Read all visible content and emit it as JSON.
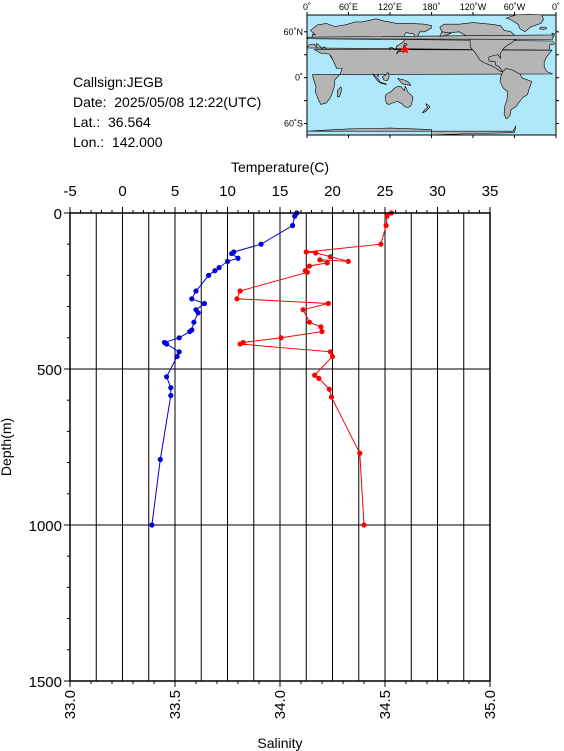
{
  "info": {
    "callsign": "Callsign:JEGB",
    "date": "Date:  2025/05/08 12:22(UTC)",
    "lat": "Lat.:  36.564",
    "lon": "Lon.:  142.000"
  },
  "map": {
    "top_labels": [
      "0˚",
      "60˚E",
      "120˚E",
      "180˚",
      "120˚W",
      "60˚W",
      "0˚"
    ],
    "side_labels": [
      "60˚N",
      "0˚",
      "60˚S"
    ],
    "ocean_color": "#aee8fa",
    "land_color": "#b5b5b5",
    "marker_lon": 142.0,
    "marker_lat": 36.564,
    "marker_color": "#ff0000",
    "marker_icon": "star-icon"
  },
  "chart_data": {
    "type": "line",
    "ylabel": "Depth(m)",
    "y_ticks": [
      "0",
      "500",
      "1000",
      "1500"
    ],
    "ylim": [
      1500,
      0
    ],
    "temperature_axis": {
      "label": "Temperature(C)",
      "ticks": [
        "-5",
        "0",
        "5",
        "10",
        "15",
        "20",
        "25",
        "30",
        "35"
      ],
      "range": [
        -5,
        35
      ]
    },
    "salinity_axis": {
      "label": "Salinity",
      "ticks": [
        "33.0",
        "33.5",
        "34.0",
        "34.5",
        "35.0"
      ],
      "range": [
        33.0,
        35.0
      ]
    },
    "grid": true,
    "series": [
      {
        "key": "temperature",
        "color": "#ff0000",
        "points": [
          [
            25.6,
            0
          ],
          [
            25.2,
            10
          ],
          [
            25.1,
            40
          ],
          [
            24.6,
            100
          ],
          [
            17.5,
            125
          ],
          [
            18.4,
            128
          ],
          [
            19.8,
            140
          ],
          [
            21.5,
            155
          ],
          [
            18.8,
            150
          ],
          [
            19.5,
            160
          ],
          [
            17.8,
            170
          ],
          [
            17.4,
            185
          ],
          [
            17.6,
            190
          ],
          [
            11.2,
            250
          ],
          [
            10.9,
            275
          ],
          [
            19.6,
            290
          ],
          [
            17.2,
            310
          ],
          [
            17.8,
            350
          ],
          [
            18.9,
            365
          ],
          [
            19.0,
            380
          ],
          [
            15.1,
            400
          ],
          [
            11.5,
            415
          ],
          [
            11.2,
            420
          ],
          [
            19.8,
            445
          ],
          [
            20.0,
            460
          ],
          [
            18.3,
            520
          ],
          [
            18.7,
            530
          ],
          [
            19.7,
            565
          ],
          [
            19.9,
            590
          ],
          [
            22.6,
            770
          ],
          [
            23.0,
            1000
          ]
        ]
      },
      {
        "key": "salinity",
        "color": "#0000dd",
        "points": [
          [
            34.08,
            0
          ],
          [
            34.07,
            10
          ],
          [
            34.06,
            40
          ],
          [
            33.91,
            100
          ],
          [
            33.78,
            125
          ],
          [
            33.77,
            130
          ],
          [
            33.8,
            145
          ],
          [
            33.75,
            155
          ],
          [
            33.71,
            175
          ],
          [
            33.69,
            185
          ],
          [
            33.66,
            200
          ],
          [
            33.6,
            250
          ],
          [
            33.58,
            275
          ],
          [
            33.64,
            290
          ],
          [
            33.6,
            310
          ],
          [
            33.61,
            320
          ],
          [
            33.59,
            350
          ],
          [
            33.58,
            375
          ],
          [
            33.57,
            380
          ],
          [
            33.52,
            400
          ],
          [
            33.45,
            415
          ],
          [
            33.46,
            420
          ],
          [
            33.52,
            445
          ],
          [
            33.51,
            460
          ],
          [
            33.46,
            525
          ],
          [
            33.48,
            560
          ],
          [
            33.48,
            585
          ],
          [
            33.43,
            790
          ],
          [
            33.39,
            1000
          ]
        ]
      }
    ]
  }
}
